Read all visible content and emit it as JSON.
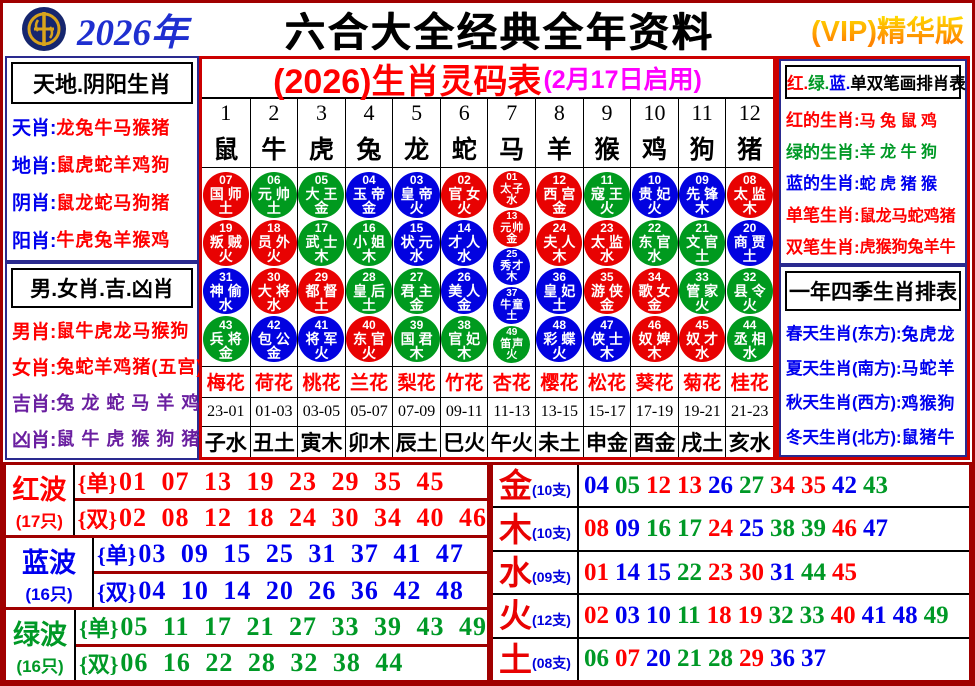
{
  "header": {
    "year": "2026年",
    "title": "六合大全经典全年资料",
    "vip": "(VIP)精华版"
  },
  "left_top": {
    "title": "天地.阴阳生肖",
    "items": [
      {
        "label": "天肖",
        "value": "龙兔牛马猴猪",
        "lc": "blue",
        "vc": "red"
      },
      {
        "label": "地肖",
        "value": "鼠虎蛇羊鸡狗",
        "lc": "blue",
        "vc": "red"
      },
      {
        "label": "阴肖",
        "value": "鼠龙蛇马狗猪",
        "lc": "blue",
        "vc": "red"
      },
      {
        "label": "阳肖",
        "value": "牛虎兔羊猴鸡",
        "lc": "blue",
        "vc": "red"
      }
    ]
  },
  "left_bottom": {
    "title": "男.女肖.吉.凶肖",
    "items": [
      {
        "label": "男肖",
        "value": "鼠牛虎龙马猴狗",
        "lc": "red",
        "vc": "red"
      },
      {
        "label": "女肖",
        "value": "兔蛇羊鸡猪(五宫)",
        "lc": "red",
        "vc": "red"
      },
      {
        "label": "吉肖",
        "value": "兔 龙 蛇 马 羊 鸡",
        "lc": "purple",
        "vc": "purple"
      },
      {
        "label": "凶肖",
        "value": "鼠 牛 虎 猴 狗 猪",
        "lc": "purple",
        "vc": "purple"
      }
    ]
  },
  "main_table": {
    "title": "(2026)生肖灵码表",
    "subtitle": "(2月17日启用)",
    "columns": [
      {
        "num": "1",
        "zodiac": "鼠",
        "flower": "梅花",
        "hour": "23-01",
        "branch": "子水",
        "balls": [
          {
            "n": "07",
            "r": "国师",
            "e": "土",
            "c": "red"
          },
          {
            "n": "19",
            "r": "叛贼",
            "e": "火",
            "c": "red"
          },
          {
            "n": "31",
            "r": "神偷",
            "e": "水",
            "c": "blue"
          },
          {
            "n": "43",
            "r": "兵将",
            "e": "金",
            "c": "green"
          }
        ]
      },
      {
        "num": "2",
        "zodiac": "牛",
        "flower": "荷花",
        "hour": "01-03",
        "branch": "丑土",
        "balls": [
          {
            "n": "06",
            "r": "元帅",
            "e": "土",
            "c": "green"
          },
          {
            "n": "18",
            "r": "员外",
            "e": "火",
            "c": "red"
          },
          {
            "n": "30",
            "r": "大将",
            "e": "水",
            "c": "red"
          },
          {
            "n": "42",
            "r": "包公",
            "e": "金",
            "c": "blue"
          }
        ]
      },
      {
        "num": "3",
        "zodiac": "虎",
        "flower": "桃花",
        "hour": "03-05",
        "branch": "寅木",
        "balls": [
          {
            "n": "05",
            "r": "大王",
            "e": "金",
            "c": "green"
          },
          {
            "n": "17",
            "r": "武士",
            "e": "木",
            "c": "green"
          },
          {
            "n": "29",
            "r": "都督",
            "e": "土",
            "c": "red"
          },
          {
            "n": "41",
            "r": "将军",
            "e": "火",
            "c": "blue"
          }
        ]
      },
      {
        "num": "4",
        "zodiac": "兔",
        "flower": "兰花",
        "hour": "05-07",
        "branch": "卯木",
        "balls": [
          {
            "n": "04",
            "r": "玉帝",
            "e": "金",
            "c": "blue"
          },
          {
            "n": "16",
            "r": "小姐",
            "e": "木",
            "c": "green"
          },
          {
            "n": "28",
            "r": "皇后",
            "e": "土",
            "c": "green"
          },
          {
            "n": "40",
            "r": "东官",
            "e": "火",
            "c": "red"
          }
        ]
      },
      {
        "num": "5",
        "zodiac": "龙",
        "flower": "梨花",
        "hour": "07-09",
        "branch": "辰土",
        "balls": [
          {
            "n": "03",
            "r": "皇帝",
            "e": "火",
            "c": "blue"
          },
          {
            "n": "15",
            "r": "状元",
            "e": "水",
            "c": "blue"
          },
          {
            "n": "27",
            "r": "君主",
            "e": "金",
            "c": "green"
          },
          {
            "n": "39",
            "r": "国君",
            "e": "木",
            "c": "green"
          }
        ]
      },
      {
        "num": "6",
        "zodiac": "蛇",
        "flower": "竹花",
        "hour": "09-11",
        "branch": "巳火",
        "balls": [
          {
            "n": "02",
            "r": "官女",
            "e": "火",
            "c": "red"
          },
          {
            "n": "14",
            "r": "才人",
            "e": "水",
            "c": "blue"
          },
          {
            "n": "26",
            "r": "美人",
            "e": "金",
            "c": "blue"
          },
          {
            "n": "38",
            "r": "官妃",
            "e": "木",
            "c": "green"
          }
        ]
      },
      {
        "num": "7",
        "zodiac": "马",
        "flower": "杏花",
        "hour": "11-13",
        "branch": "午火",
        "small": true,
        "balls": [
          {
            "n": "01",
            "r": "太子",
            "e": "水",
            "c": "red"
          },
          {
            "n": "13",
            "r": "元帅",
            "e": "金",
            "c": "red"
          },
          {
            "n": "25",
            "r": "秀才",
            "e": "木",
            "c": "blue"
          },
          {
            "n": "37",
            "r": "牛童",
            "e": "土",
            "c": "blue"
          },
          {
            "n": "49",
            "r": "笛声",
            "e": "火",
            "c": "green"
          }
        ]
      },
      {
        "num": "8",
        "zodiac": "羊",
        "flower": "樱花",
        "hour": "13-15",
        "branch": "未土",
        "balls": [
          {
            "n": "12",
            "r": "西宫",
            "e": "金",
            "c": "red"
          },
          {
            "n": "24",
            "r": "夫人",
            "e": "木",
            "c": "red"
          },
          {
            "n": "36",
            "r": "皇妃",
            "e": "土",
            "c": "blue"
          },
          {
            "n": "48",
            "r": "彩蝶",
            "e": "火",
            "c": "blue"
          }
        ]
      },
      {
        "num": "9",
        "zodiac": "猴",
        "flower": "松花",
        "hour": "15-17",
        "branch": "申金",
        "balls": [
          {
            "n": "11",
            "r": "寇王",
            "e": "火",
            "c": "green"
          },
          {
            "n": "23",
            "r": "太监",
            "e": "水",
            "c": "red"
          },
          {
            "n": "35",
            "r": "游侠",
            "e": "金",
            "c": "red"
          },
          {
            "n": "47",
            "r": "侠士",
            "e": "木",
            "c": "blue"
          }
        ]
      },
      {
        "num": "10",
        "zodiac": "鸡",
        "flower": "葵花",
        "hour": "17-19",
        "branch": "酉金",
        "balls": [
          {
            "n": "10",
            "r": "贵妃",
            "e": "火",
            "c": "blue"
          },
          {
            "n": "22",
            "r": "东官",
            "e": "水",
            "c": "green"
          },
          {
            "n": "34",
            "r": "歌女",
            "e": "金",
            "c": "red"
          },
          {
            "n": "46",
            "r": "奴婢",
            "e": "木",
            "c": "red"
          }
        ]
      },
      {
        "num": "11",
        "zodiac": "狗",
        "flower": "菊花",
        "hour": "19-21",
        "branch": "戌土",
        "balls": [
          {
            "n": "09",
            "r": "先锋",
            "e": "木",
            "c": "blue"
          },
          {
            "n": "21",
            "r": "文官",
            "e": "土",
            "c": "green"
          },
          {
            "n": "33",
            "r": "管家",
            "e": "火",
            "c": "green"
          },
          {
            "n": "45",
            "r": "奴才",
            "e": "水",
            "c": "red"
          }
        ]
      },
      {
        "num": "12",
        "zodiac": "猪",
        "flower": "桂花",
        "hour": "21-23",
        "branch": "亥水",
        "balls": [
          {
            "n": "08",
            "r": "太监",
            "e": "木",
            "c": "red"
          },
          {
            "n": "20",
            "r": "商贾",
            "e": "土",
            "c": "blue"
          },
          {
            "n": "32",
            "r": "县令",
            "e": "火",
            "c": "green"
          },
          {
            "n": "44",
            "r": "丞相",
            "e": "水",
            "c": "green"
          }
        ]
      }
    ]
  },
  "right_top": {
    "title_parts": [
      {
        "text": "红.",
        "color": "red"
      },
      {
        "text": "绿.",
        "color": "green"
      },
      {
        "text": "蓝.",
        "color": "blue"
      },
      {
        "text": "单双笔画排肖表",
        "color": "black"
      }
    ],
    "items": [
      {
        "label": "红的生肖",
        "value": "马 兔 鼠 鸡",
        "lc": "red",
        "vc": "red"
      },
      {
        "label": "绿的生肖",
        "value": "羊 龙 牛 狗",
        "lc": "green",
        "vc": "green"
      },
      {
        "label": "蓝的生肖",
        "value": "蛇 虎 猪 猴",
        "lc": "blue",
        "vc": "blue"
      },
      {
        "label": "单笔生肖",
        "value": "鼠龙马蛇鸡猪",
        "lc": "red",
        "vc": "red"
      },
      {
        "label": "双笔生肖",
        "value": "虎猴狗兔羊牛",
        "lc": "red",
        "vc": "red"
      }
    ]
  },
  "right_bottom": {
    "title": "一年四季生肖排表",
    "items": [
      {
        "label": "春天生肖(东方)",
        "value": "兔虎龙",
        "lc": "blue",
        "vc": "blue"
      },
      {
        "label": "夏天生肖(南方)",
        "value": "马蛇羊",
        "lc": "blue",
        "vc": "blue"
      },
      {
        "label": "秋天生肖(西方)",
        "value": "鸡猴狗",
        "lc": "blue",
        "vc": "blue"
      },
      {
        "label": "冬天生肖(北方)",
        "value": "鼠猪牛",
        "lc": "blue",
        "vc": "blue"
      }
    ]
  },
  "bottom_left": {
    "odd_label": "{单}",
    "even_label": "{双}",
    "waves": [
      {
        "name": "红波",
        "count": "(17只)",
        "color": "red",
        "odd": "01 07 13 19 23 29 35 45",
        "even": "02 08 12 18 24 30 34 40 46"
      },
      {
        "name": "蓝波",
        "count": "(16只)",
        "color": "blue",
        "odd": "03 09 15 25 31 37 41 47",
        "even": "04 10 14 20 26 36 42 48"
      },
      {
        "name": "绿波",
        "count": "(16只)",
        "color": "green",
        "odd": "05 11 17 21 27 33 39 43 49",
        "even": "06 16 22 28 32 38 44"
      }
    ]
  },
  "bottom_right": {
    "elements": [
      {
        "name": "金",
        "count": "(10支)",
        "numbers": [
          "04",
          "05",
          "12",
          "13",
          "26",
          "27",
          "34",
          "35",
          "42",
          "43"
        ]
      },
      {
        "name": "木",
        "count": "(10支)",
        "numbers": [
          "08",
          "09",
          "16",
          "17",
          "24",
          "25",
          "38",
          "39",
          "46",
          "47"
        ]
      },
      {
        "name": "水",
        "count": "(09支)",
        "numbers": [
          "01",
          "14",
          "15",
          "22",
          "23",
          "30",
          "31",
          "44",
          "45"
        ]
      },
      {
        "name": "火",
        "count": "(12支)",
        "numbers": [
          "02",
          "03",
          "10",
          "11",
          "18",
          "19",
          "32",
          "33",
          "40",
          "41",
          "48",
          "49"
        ]
      },
      {
        "name": "土",
        "count": "(08支)",
        "numbers": [
          "06",
          "07",
          "20",
          "21",
          "28",
          "29",
          "36",
          "37"
        ]
      }
    ]
  },
  "wave_colors": {
    "red": [
      "01",
      "02",
      "07",
      "08",
      "12",
      "13",
      "18",
      "19",
      "23",
      "24",
      "29",
      "30",
      "34",
      "35",
      "40",
      "45",
      "46"
    ],
    "blue": [
      "03",
      "04",
      "09",
      "10",
      "14",
      "15",
      "20",
      "25",
      "26",
      "31",
      "36",
      "37",
      "41",
      "42",
      "47",
      "48"
    ],
    "green": [
      "05",
      "06",
      "11",
      "16",
      "17",
      "21",
      "22",
      "27",
      "28",
      "32",
      "33",
      "38",
      "39",
      "43",
      "44",
      "49"
    ]
  },
  "palette": {
    "red": "#ff0000",
    "blue": "#0000ee",
    "green": "#009926",
    "purple": "#6a1fa0",
    "black": "#000000",
    "magenta": "#ff00ff"
  }
}
